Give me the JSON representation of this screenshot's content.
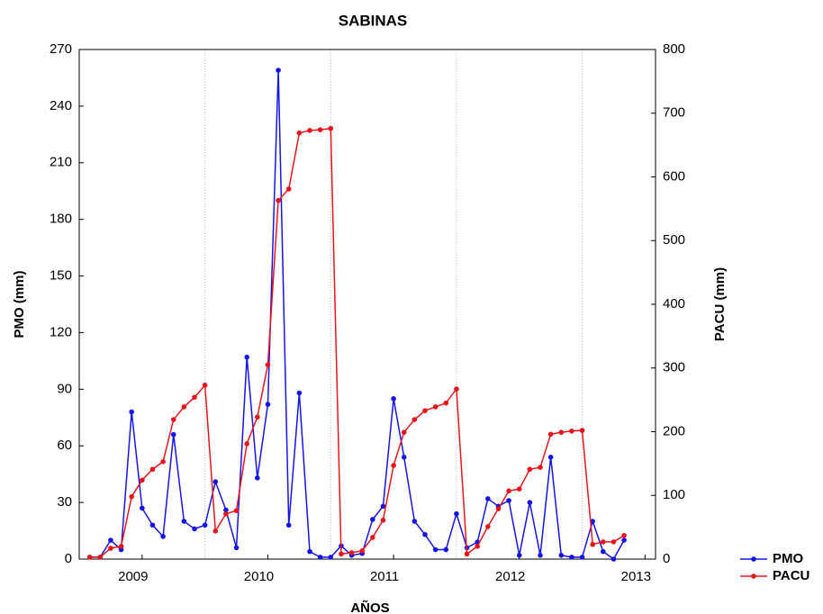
{
  "chart_data": {
    "type": "line",
    "title": "SABINAS",
    "x_label": "AÑOS",
    "y_label": "PMO (mm)",
    "y2_label": "PACU (mm)",
    "x": [
      1,
      2,
      3,
      4,
      5,
      6,
      7,
      8,
      9,
      10,
      11,
      12,
      13,
      14,
      15,
      16,
      17,
      18,
      19,
      20,
      21,
      22,
      23,
      24,
      25,
      26,
      27,
      28,
      29,
      30,
      31,
      32,
      33,
      34,
      35,
      36,
      37,
      38,
      39,
      40,
      41,
      42,
      43,
      44,
      45,
      46,
      47,
      48,
      49,
      50,
      51,
      52
    ],
    "xlim": [
      0,
      55
    ],
    "xticks": [
      {
        "value": 6,
        "label": "2009"
      },
      {
        "value": 18,
        "label": "2010"
      },
      {
        "value": 30,
        "label": "2011"
      },
      {
        "value": 42,
        "label": "2012"
      },
      {
        "value": 54,
        "label": "2013"
      }
    ],
    "ylim": [
      0,
      270
    ],
    "yticks": [
      0,
      30,
      60,
      90,
      120,
      150,
      180,
      210,
      240,
      270
    ],
    "y2lim": [
      0,
      800
    ],
    "y2ticks": [
      0,
      100,
      200,
      300,
      400,
      500,
      600,
      700,
      800
    ],
    "x_grid": true,
    "legend": "bottom-right",
    "series": [
      {
        "name": "PMO",
        "color": "#1414e6",
        "values": [
          1,
          1,
          10,
          5,
          78,
          27,
          18,
          12,
          66,
          20,
          16,
          18,
          41,
          26,
          6,
          107,
          43,
          82,
          259,
          18,
          88,
          4,
          1,
          1,
          7,
          2,
          3,
          21,
          28,
          85,
          54,
          20,
          13,
          5,
          5,
          24,
          6,
          9,
          32,
          28,
          31,
          2,
          30,
          2,
          54,
          2,
          1,
          1,
          20,
          4,
          0,
          10
        ]
      },
      {
        "name": "PACU",
        "color": "#e8141c",
        "axis": "y2",
        "values": [
          3,
          3,
          17,
          20,
          98,
          124,
          141,
          153,
          219,
          239,
          254,
          273,
          44,
          71,
          76,
          181,
          223,
          305,
          563,
          581,
          669,
          673,
          674,
          676,
          8,
          10,
          13,
          34,
          61,
          147,
          199,
          219,
          233,
          239,
          245,
          267,
          8,
          20,
          51,
          79,
          107,
          110,
          141,
          144,
          196,
          199,
          201,
          202,
          23,
          27,
          27,
          37
        ]
      }
    ]
  }
}
